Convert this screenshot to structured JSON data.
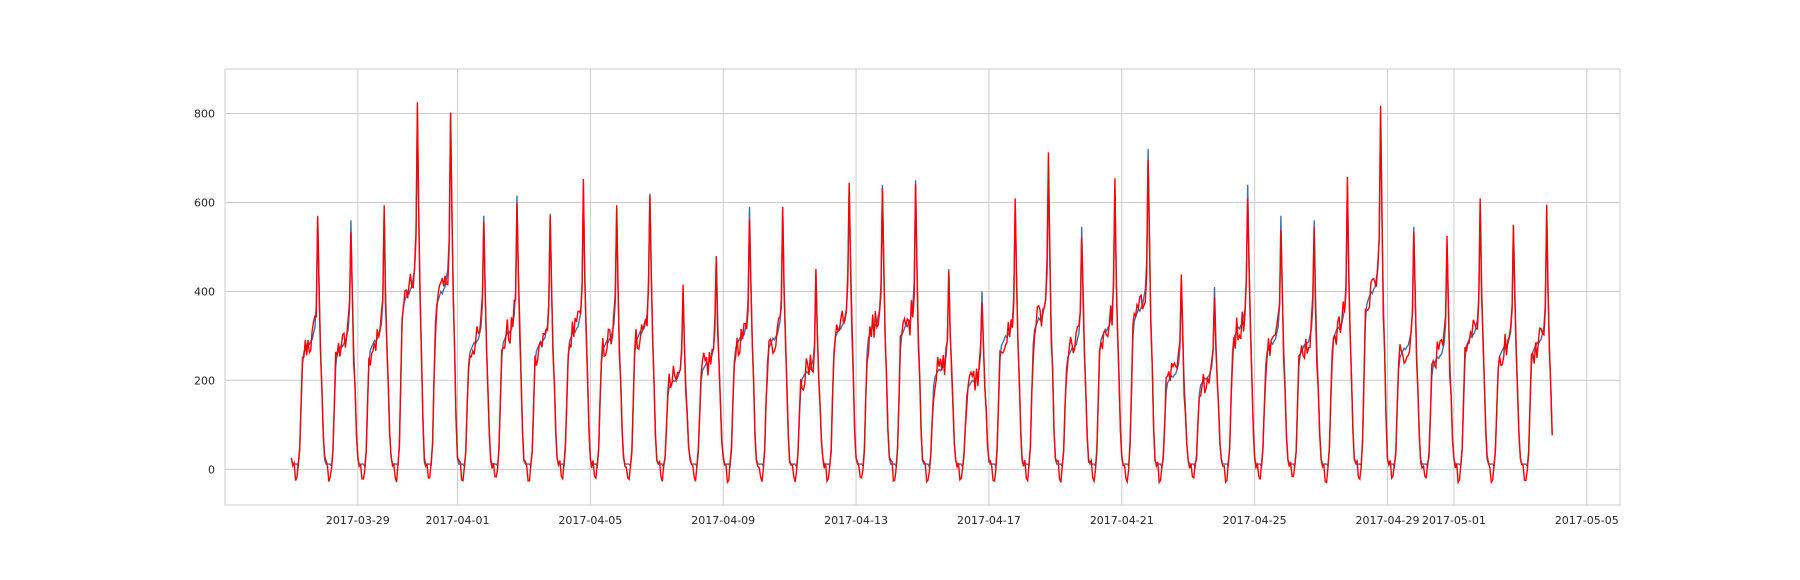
{
  "chart_data": {
    "type": "line",
    "title": "",
    "xlabel": "",
    "ylabel": "",
    "x_range": [
      "2017-03-25",
      "2017-05-06"
    ],
    "ylim": [
      -80,
      900
    ],
    "grid": true,
    "legend": "none",
    "x_ticks": [
      "2017-03-29",
      "2017-04-01",
      "2017-04-05",
      "2017-04-09",
      "2017-04-13",
      "2017-04-17",
      "2017-04-21",
      "2017-04-25",
      "2017-04-29",
      "2017-05-01",
      "2017-05-05"
    ],
    "y_ticks": [
      0,
      200,
      400,
      600,
      800
    ],
    "start": "2017-03-27",
    "end": "2017-05-03",
    "daily_peaks": [
      570,
      560,
      580,
      800,
      800,
      570,
      615,
      575,
      625,
      580,
      620,
      400,
      480,
      590,
      590,
      440,
      640,
      640,
      650,
      450,
      400,
      600,
      680,
      545,
      630,
      720,
      420,
      410,
      640,
      570,
      560,
      640,
      800,
      545,
      505,
      600,
      550,
      570
    ],
    "series": [
      {
        "name": "",
        "color": "#3b6fb0"
      },
      {
        "name": "",
        "color": "#ff0000"
      }
    ]
  }
}
